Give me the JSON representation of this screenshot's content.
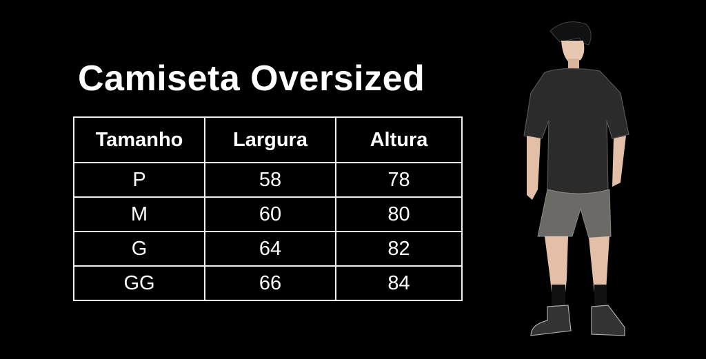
{
  "title": "Camiseta Oversized",
  "table": {
    "headers": [
      "Tamanho",
      "Largura",
      "Altura"
    ],
    "rows": [
      [
        "P",
        "58",
        "78"
      ],
      [
        "M",
        "60",
        "80"
      ],
      [
        "G",
        "64",
        "82"
      ],
      [
        "GG",
        "66",
        "84"
      ]
    ]
  },
  "colors": {
    "background": "#000000",
    "text": "#ffffff",
    "shirt": "#2b2b2b",
    "shorts": "#6b6a66"
  }
}
